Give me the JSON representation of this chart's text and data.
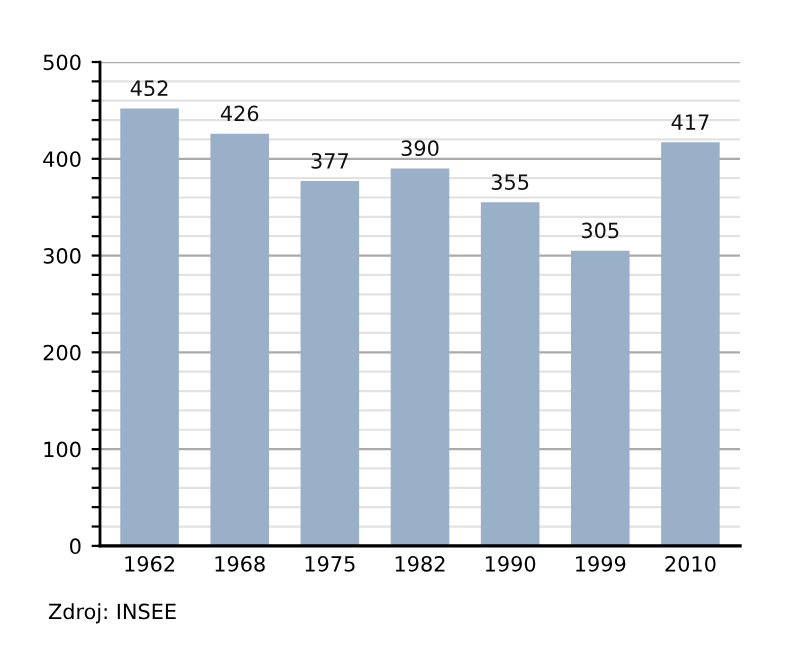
{
  "chart_data": {
    "type": "bar",
    "categories": [
      "1962",
      "1968",
      "1975",
      "1982",
      "1990",
      "1999",
      "2010"
    ],
    "values": [
      452,
      426,
      377,
      390,
      355,
      305,
      417
    ],
    "color": "#9ab0c9",
    "data_labels": true,
    "ylim": [
      0,
      500
    ],
    "yticks": [
      0,
      {
        "value": 20,
        "label": null
      },
      {
        "value": 40,
        "label": null
      },
      {
        "value": 60,
        "label": null
      },
      {
        "value": 80,
        "label": null
      },
      100,
      {
        "value": 120,
        "label": null
      },
      {
        "value": 140,
        "label": null
      },
      {
        "value": 160,
        "label": null
      },
      {
        "value": 180,
        "label": null
      },
      200,
      {
        "value": 220,
        "label": null
      },
      {
        "value": 240,
        "label": null
      },
      {
        "value": 260,
        "label": null
      },
      {
        "value": 280,
        "label": null
      },
      300,
      {
        "value": 320,
        "label": null
      },
      {
        "value": 340,
        "label": null
      },
      {
        "value": 360,
        "label": null
      },
      {
        "value": 380,
        "label": null
      },
      400,
      {
        "value": 420,
        "label": null
      },
      {
        "value": 440,
        "label": null
      },
      {
        "value": 460,
        "label": null
      },
      {
        "value": 480,
        "label": null
      },
      500
    ],
    "grid": "y",
    "annotations": [
      "Zdroj: INSEE"
    ]
  }
}
